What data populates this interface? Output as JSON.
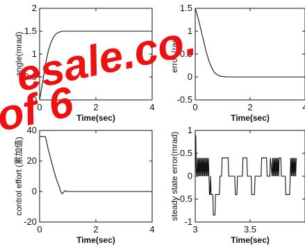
{
  "chart_data": [
    {
      "type": "line",
      "xlabel": "Time(sec)",
      "ylabel": "angle(mrad)",
      "xlim": [
        0,
        4
      ],
      "ylim": [
        0,
        2
      ],
      "x_ticks": [
        "0",
        "2",
        "4"
      ],
      "y_ticks": [
        "0",
        "0.5",
        "1",
        "1.5",
        "2"
      ],
      "series": [
        {
          "x": [
            0,
            0.1,
            0.2,
            0.3,
            0.4,
            0.5,
            0.6,
            0.7,
            0.8,
            0.9,
            1.0,
            4.0
          ],
          "y": [
            0,
            0.35,
            0.75,
            1.05,
            1.25,
            1.38,
            1.45,
            1.48,
            1.5,
            1.5,
            1.5,
            1.5
          ]
        }
      ]
    },
    {
      "type": "line",
      "xlabel": "Time(sec)",
      "ylabel": "error (rad)",
      "xlim": [
        0,
        4
      ],
      "ylim": [
        -0.5,
        1.5
      ],
      "x_ticks": [
        "0",
        "2",
        "4"
      ],
      "y_ticks": [
        "-0.5",
        "0",
        "0.5",
        "1",
        "1.5"
      ],
      "series": [
        {
          "x": [
            0,
            0.05,
            0.1,
            0.15,
            0.2,
            0.3,
            0.4,
            0.5,
            0.6,
            0.7,
            0.8,
            0.9,
            1.0,
            1.2,
            4.0
          ],
          "y": [
            1.5,
            1.4,
            1.3,
            1.18,
            1.05,
            0.8,
            0.55,
            0.35,
            0.2,
            0.1,
            0.05,
            0.02,
            0.01,
            0,
            0
          ]
        }
      ]
    },
    {
      "type": "line",
      "xlabel": "Time(sec)",
      "ylabel": "control effort (累加值)",
      "xlim": [
        0,
        4
      ],
      "ylim": [
        -20,
        40
      ],
      "x_ticks": [
        "0",
        "2",
        "4"
      ],
      "y_ticks": [
        "-20",
        "0",
        "20",
        "40"
      ],
      "series": [
        {
          "x": [
            0,
            0.2,
            0.22,
            0.3,
            0.4,
            0.5,
            0.6,
            0.7,
            0.75,
            0.8,
            0.85,
            0.9,
            1.0,
            4.0
          ],
          "y": [
            36,
            36,
            35,
            28,
            21,
            14,
            8,
            3,
            0,
            -1.5,
            -0.5,
            0.5,
            0,
            0
          ]
        }
      ]
    },
    {
      "type": "line",
      "xlabel": "Time(sec)",
      "ylabel": "steady state error(mrad)",
      "xlim": [
        3,
        4
      ],
      "ylim": [
        -1,
        1
      ],
      "x_ticks": [
        "3",
        "3.5"
      ],
      "y_ticks": [
        "-1",
        "-0.5",
        "0",
        "0.5",
        "1"
      ],
      "series": [
        {
          "x": [
            3.0,
            3.005,
            3.01,
            3.015,
            3.02,
            3.025,
            3.03,
            3.035,
            3.04,
            3.045,
            3.05,
            3.055,
            3.06,
            3.065,
            3.07,
            3.075,
            3.08,
            3.085,
            3.09,
            3.095,
            3.1,
            3.105,
            3.11,
            3.115,
            3.12,
            3.125,
            3.13,
            3.135,
            3.14,
            3.145,
            3.15,
            3.16,
            3.165,
            3.17,
            3.18,
            3.185,
            3.19,
            3.2,
            3.22,
            3.225,
            3.24,
            3.245,
            3.3,
            3.305,
            3.36,
            3.365,
            3.38,
            3.385,
            3.43,
            3.435,
            3.47,
            3.475,
            3.51,
            3.515,
            3.54,
            3.545,
            3.6,
            3.605,
            3.65,
            3.655,
            3.68,
            3.685,
            3.7,
            3.705,
            3.71,
            3.715,
            3.72,
            3.725,
            3.73,
            3.735,
            3.74,
            3.745,
            3.75,
            3.755,
            3.76,
            3.765,
            3.78,
            3.785,
            3.82,
            3.825,
            3.86,
            3.865,
            3.87,
            3.875,
            3.88,
            3.885,
            3.89,
            3.895,
            3.9,
            3.905,
            3.91,
            3.915,
            3.92
          ],
          "y": [
            0,
            0.9,
            0.1,
            0,
            0.4,
            0,
            0.4,
            0,
            0.4,
            0,
            0.4,
            0,
            0.4,
            0,
            0.4,
            0,
            0.4,
            0,
            0.4,
            0,
            0.4,
            0,
            0.4,
            0,
            0.4,
            0,
            -0.4,
            -0.4,
            0,
            -0.4,
            -0.4,
            -0.4,
            -0.85,
            -0.85,
            -0.85,
            -0.4,
            -0.4,
            -0.4,
            -0.4,
            0,
            0,
            0.4,
            0.4,
            0,
            0,
            -0.4,
            -0.4,
            0,
            0,
            0.4,
            0.4,
            0,
            0,
            -0.4,
            -0.4,
            0,
            0,
            0.4,
            0.4,
            0,
            0,
            0.4,
            0,
            0.4,
            0,
            0.4,
            0,
            0.4,
            0,
            0.4,
            0,
            0.4,
            0,
            0.4,
            0,
            0.4,
            0.4,
            0,
            0,
            -0.4,
            -0.4,
            0,
            0.4,
            0,
            0.4,
            0,
            0.4,
            0,
            0.4,
            0,
            0.4,
            0,
            0.4
          ]
        }
      ]
    }
  ],
  "watermark": {
    "line1": "esale.co.",
    "line2": "of 6",
    "color": "#ee1111"
  }
}
